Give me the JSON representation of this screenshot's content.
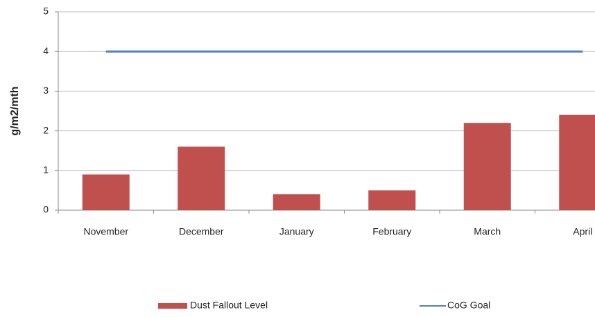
{
  "chart_data": {
    "type": "bar",
    "y_label": "g/m2/mth",
    "categories": [
      "November",
      "December",
      "January",
      "February",
      "March",
      "April"
    ],
    "series": [
      {
        "name": "Dust Fallout Level",
        "type": "bar",
        "color": "#c0504d",
        "values": [
          0.9,
          1.6,
          0.4,
          0.5,
          2.2,
          2.4
        ]
      },
      {
        "name": "CoG Goal",
        "type": "line",
        "color": "#4f81bd",
        "values": [
          4,
          4,
          4,
          4,
          4,
          4
        ]
      }
    ],
    "ylim": [
      0,
      5
    ],
    "yticks": [
      0,
      1,
      2,
      3,
      4,
      5
    ],
    "grid": true,
    "legend": "bottom"
  }
}
